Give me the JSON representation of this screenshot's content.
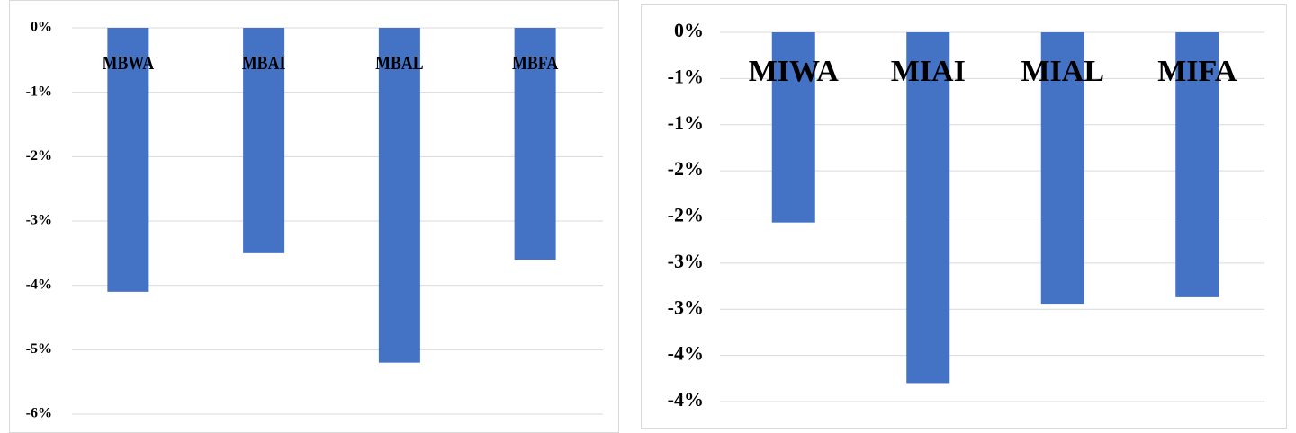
{
  "chart_data": [
    {
      "type": "bar",
      "categories": [
        "MBWA",
        "MBAI",
        "MBAL",
        "MBFA"
      ],
      "values": [
        -4.1,
        -3.5,
        -5.2,
        -3.6
      ],
      "color": "#4472c4",
      "ylim": [
        -6,
        0
      ],
      "yticks": [
        {
          "value": 0,
          "label": "0%"
        },
        {
          "value": -1,
          "label": "-1%"
        },
        {
          "value": -2,
          "label": "-2%"
        },
        {
          "value": -3,
          "label": "-3%"
        },
        {
          "value": -4,
          "label": "-4%"
        },
        {
          "value": -5,
          "label": "-5%"
        },
        {
          "value": -6,
          "label": "-6%"
        }
      ],
      "grid": true
    },
    {
      "type": "bar",
      "categories": [
        "MIWA",
        "MIAI",
        "MIAL",
        "MIFA"
      ],
      "values": [
        -2.06,
        -3.8,
        -2.94,
        -2.87
      ],
      "color": "#4472c4",
      "ylim": [
        -4,
        0
      ],
      "yticks": [
        {
          "value": 0,
          "label": "0%"
        },
        {
          "value": -0.5,
          "label": "-1%"
        },
        {
          "value": -1,
          "label": "-1%"
        },
        {
          "value": -1.5,
          "label": "-2%"
        },
        {
          "value": -2,
          "label": "-2%"
        },
        {
          "value": -2.5,
          "label": "-3%"
        },
        {
          "value": -3,
          "label": "-3%"
        },
        {
          "value": -3.5,
          "label": "-4%"
        },
        {
          "value": -4,
          "label": "-4%"
        }
      ],
      "grid": true
    }
  ]
}
